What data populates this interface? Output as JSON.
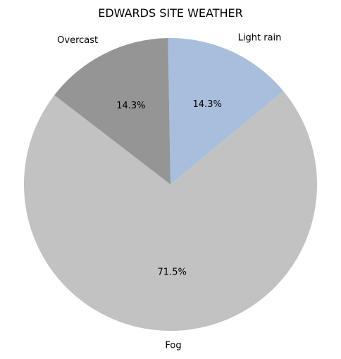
{
  "chart_data": {
    "type": "pie",
    "title": "EDWARDS SITE WEATHER",
    "slices": [
      {
        "label": "Light rain",
        "value": 14.3,
        "display": "14.3%",
        "color": "#a8bedc"
      },
      {
        "label": "Fog",
        "value": 71.5,
        "display": "71.5%",
        "color": "#c2c2c2"
      },
      {
        "label": "Overcast",
        "value": 14.3,
        "display": "14.3%",
        "color": "#959595"
      }
    ],
    "start_angle_deg": 91,
    "direction": "clockwise",
    "legend": "none"
  }
}
